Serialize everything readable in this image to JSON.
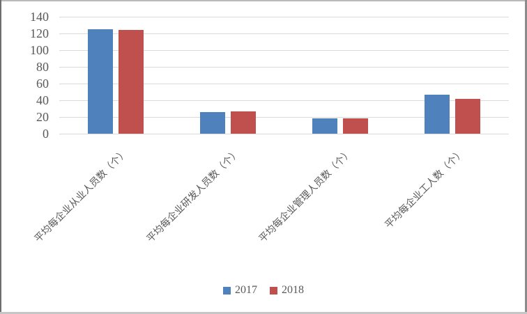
{
  "chart_data": {
    "type": "bar",
    "categories": [
      "平均每企业从业人员数（个）",
      "平均每企业研发人员数（个）",
      "平均每企业管理人员数（个）",
      "平均每企业工人数（个）"
    ],
    "series": [
      {
        "name": "2017",
        "color": "#4F81BD",
        "values": [
          125,
          26,
          18,
          47
        ]
      },
      {
        "name": "2018",
        "color": "#C0504D",
        "values": [
          124,
          27,
          18,
          42
        ]
      }
    ],
    "xlabel": "",
    "ylabel": "",
    "ylim": [
      0,
      140
    ],
    "yticks": [
      0,
      20,
      40,
      60,
      80,
      100,
      120,
      140
    ],
    "ytick_labels": [
      "0",
      "20",
      "40",
      "60",
      "80",
      "100",
      "120",
      "140"
    ],
    "grid": true,
    "legend_position": "bottom",
    "colors": {
      "gridline": "#d9d9d9",
      "tick_text": "#595959",
      "category_text": "#595959",
      "background": "#ffffff"
    }
  }
}
